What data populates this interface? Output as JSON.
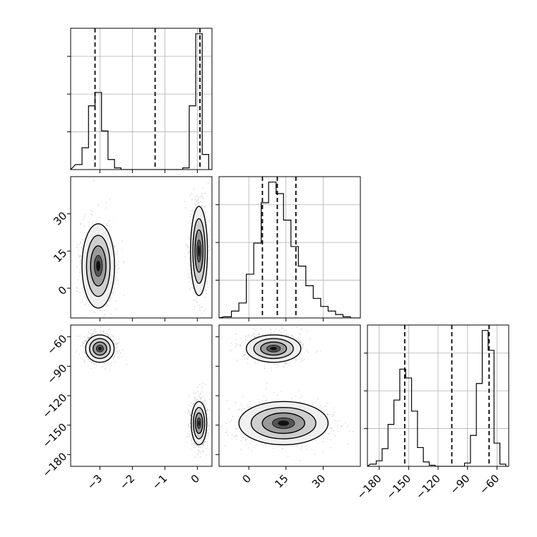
{
  "chart_data": [
    {
      "type": "histogram",
      "panel": "p1-marginal",
      "x_ticks": [
        -3,
        -2,
        -1,
        0
      ],
      "xlim": [
        -3.9,
        0.45
      ],
      "quantile_lines": [
        -3.15,
        -1.3,
        0.08
      ],
      "bins": [
        {
          "x0": -3.75,
          "x1": -3.55,
          "count": 3
        },
        {
          "x0": -3.55,
          "x1": -3.35,
          "count": 13
        },
        {
          "x0": -3.35,
          "x1": -3.15,
          "count": 38
        },
        {
          "x0": -3.15,
          "x1": -2.95,
          "count": 46
        },
        {
          "x0": -2.95,
          "x1": -2.75,
          "count": 23
        },
        {
          "x0": -2.75,
          "x1": -2.55,
          "count": 6
        },
        {
          "x0": -2.55,
          "x1": -2.35,
          "count": 1
        },
        {
          "x0": -0.45,
          "x1": -0.25,
          "count": 1
        },
        {
          "x0": -0.25,
          "x1": -0.05,
          "count": 38
        },
        {
          "x0": -0.05,
          "x1": 0.15,
          "count": 81
        },
        {
          "x0": 0.15,
          "x1": 0.35,
          "count": 9
        }
      ],
      "grid": true
    },
    {
      "type": "histogram",
      "panel": "p2-marginal",
      "x_ticks": [
        0,
        15,
        30
      ],
      "xlim": [
        -12,
        45
      ],
      "quantile_lines": [
        5.5,
        11.5,
        19.0
      ],
      "bins": [
        {
          "x0": -10,
          "x1": -7,
          "count": 1
        },
        {
          "x0": -7,
          "x1": -4,
          "count": 6
        },
        {
          "x0": -4,
          "x1": -1,
          "count": 13
        },
        {
          "x0": -1,
          "x1": 2,
          "count": 38
        },
        {
          "x0": 2,
          "x1": 5,
          "count": 65
        },
        {
          "x0": 5,
          "x1": 8,
          "count": 100
        },
        {
          "x0": 8,
          "x1": 11,
          "count": 118
        },
        {
          "x0": 11,
          "x1": 14,
          "count": 108
        },
        {
          "x0": 14,
          "x1": 17,
          "count": 85
        },
        {
          "x0": 17,
          "x1": 20,
          "count": 62
        },
        {
          "x0": 20,
          "x1": 23,
          "count": 45
        },
        {
          "x0": 23,
          "x1": 26,
          "count": 28
        },
        {
          "x0": 26,
          "x1": 29,
          "count": 17
        },
        {
          "x0": 29,
          "x1": 32,
          "count": 10
        },
        {
          "x0": 32,
          "x1": 35,
          "count": 6
        },
        {
          "x0": 35,
          "x1": 38,
          "count": 3
        },
        {
          "x0": 38,
          "x1": 41,
          "count": 1
        }
      ],
      "grid": true
    },
    {
      "type": "histogram",
      "panel": "p3-marginal",
      "x_ticks": [
        -180,
        -150,
        -120,
        -90,
        -60
      ],
      "xlim": [
        -192,
        -48
      ],
      "quantile_lines": [
        -154,
        -106,
        -68
      ],
      "bins": [
        {
          "x0": -189,
          "x1": -183,
          "count": 2
        },
        {
          "x0": -183,
          "x1": -177,
          "count": 5
        },
        {
          "x0": -177,
          "x1": -171,
          "count": 16
        },
        {
          "x0": -171,
          "x1": -165,
          "count": 38
        },
        {
          "x0": -165,
          "x1": -159,
          "count": 60
        },
        {
          "x0": -159,
          "x1": -153,
          "count": 88
        },
        {
          "x0": -153,
          "x1": -147,
          "count": 80
        },
        {
          "x0": -147,
          "x1": -141,
          "count": 50
        },
        {
          "x0": -141,
          "x1": -135,
          "count": 17
        },
        {
          "x0": -135,
          "x1": -129,
          "count": 4
        },
        {
          "x0": -129,
          "x1": -123,
          "count": 1
        },
        {
          "x0": -93,
          "x1": -87,
          "count": 3
        },
        {
          "x0": -87,
          "x1": -81,
          "count": 28
        },
        {
          "x0": -81,
          "x1": -75,
          "count": 75
        },
        {
          "x0": -75,
          "x1": -69,
          "count": 123
        },
        {
          "x0": -69,
          "x1": -63,
          "count": 105
        },
        {
          "x0": -63,
          "x1": -57,
          "count": 21
        },
        {
          "x0": -57,
          "x1": -51,
          "count": 2
        }
      ],
      "grid": true
    },
    {
      "type": "scatter",
      "panel": "p1-vs-p2",
      "x_ticks": [
        -3,
        -2,
        -1,
        0
      ],
      "y_ticks": [
        0,
        15,
        30
      ],
      "xlim": [
        -3.9,
        0.45
      ],
      "ylim": [
        -12,
        45
      ],
      "clusters": [
        {
          "x_center": -3.05,
          "y_center": 9,
          "x_spread": 0.25,
          "y_spread": 8.5
        },
        {
          "x_center": 0.05,
          "y_center": 15,
          "x_spread": 0.13,
          "y_spread": 9
        }
      ],
      "grid": false
    },
    {
      "type": "scatter",
      "panel": "p1-vs-p3",
      "x_ticks": [
        -3,
        -2,
        -1,
        0
      ],
      "y_ticks": [
        -60,
        -90,
        -120,
        -150,
        -180
      ],
      "xlim": [
        -3.9,
        0.45
      ],
      "ylim": [
        -192,
        -48
      ],
      "clusters": [
        {
          "x_center": -3.0,
          "y_center": -72,
          "x_spread": 0.22,
          "y_spread": 7
        },
        {
          "x_center": 0.05,
          "y_center": -148,
          "x_spread": 0.12,
          "y_spread": 11
        }
      ],
      "grid": false
    },
    {
      "type": "scatter",
      "panel": "p2-vs-p3",
      "x_ticks": [
        0,
        15,
        30
      ],
      "xlim": [
        -12,
        45
      ],
      "ylim": [
        -192,
        -48
      ],
      "clusters": [
        {
          "x_center": 10,
          "y_center": -72,
          "x_spread": 5.5,
          "y_spread": 7
        },
        {
          "x_center": 14,
          "y_center": -148,
          "x_spread": 9,
          "y_spread": 11
        }
      ],
      "grid": false
    }
  ]
}
